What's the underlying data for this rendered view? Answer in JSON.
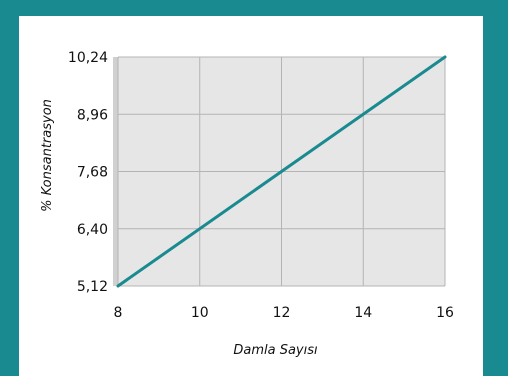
{
  "chart_data": {
    "type": "line",
    "xlabel": "Damla Sayısı",
    "ylabel": "% Konsantrasyon",
    "xlim": [
      8,
      16
    ],
    "ylim": [
      5.12,
      10.24
    ],
    "x_ticks": [
      8,
      10,
      12,
      14,
      16
    ],
    "x_tick_labels": [
      "8",
      "10",
      "12",
      "14",
      "16"
    ],
    "y_ticks": [
      5.12,
      6.4,
      7.68,
      8.96,
      10.24
    ],
    "y_tick_labels": [
      "5,12",
      "6,40",
      "7,68",
      "8,96",
      "10,24"
    ],
    "grid": true,
    "series": [
      {
        "x": [
          8,
          16
        ],
        "y": [
          5.12,
          10.24
        ]
      }
    ]
  },
  "colors": {
    "frame": "#1a8a91",
    "plot_background": "#e6e6e6",
    "grid": "#b4b4b4",
    "line": "#1a8a91"
  }
}
